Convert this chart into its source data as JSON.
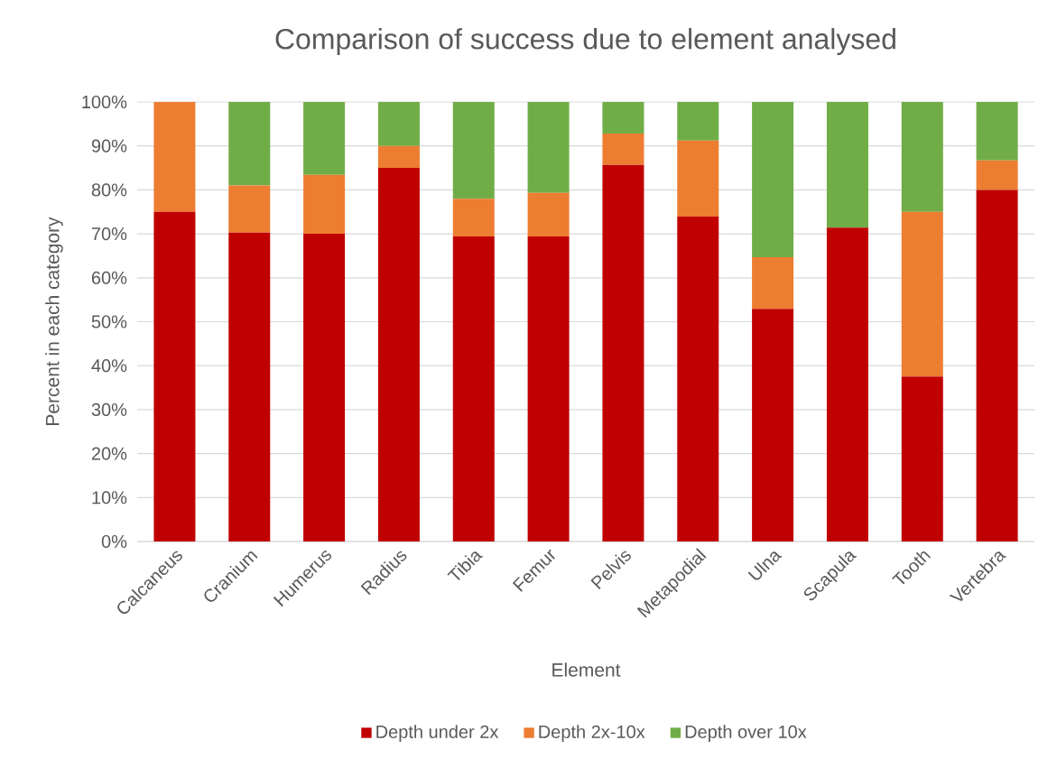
{
  "chart_data": {
    "type": "bar",
    "stacked": true,
    "title": "Comparison of success due to element analysed",
    "xlabel": "Element",
    "ylabel": "Percent in each category",
    "categories": [
      "Calcaneus",
      "Cranium",
      "Humerus",
      "Radius",
      "Tibia",
      "Femur",
      "Pelvis",
      "Metapodial",
      "Ulna",
      "Scapula",
      "Tooth",
      "Vertebra"
    ],
    "series": [
      {
        "name": "Depth under 2x",
        "color": "#c00000",
        "values": [
          75,
          70.3,
          70,
          85,
          69.4,
          69.4,
          85.7,
          73.9,
          52.9,
          71.4,
          37.5,
          80
        ]
      },
      {
        "name": "Depth  2x-10x",
        "color": "#ed7d31",
        "values": [
          25,
          10.7,
          13.4,
          5,
          8.6,
          9.9,
          7.1,
          17.3,
          11.8,
          0,
          37.5,
          6.7
        ]
      },
      {
        "name": "Depth over 10x",
        "color": "#70ad47",
        "values": [
          0,
          19,
          16.6,
          10,
          22,
          20.7,
          7.2,
          8.8,
          35.3,
          28.6,
          25,
          13.3
        ]
      }
    ],
    "ylim": [
      0,
      100
    ],
    "yticks": [
      {
        "value": 0,
        "label": "0%"
      },
      {
        "value": 10,
        "label": "10%"
      },
      {
        "value": 20,
        "label": "20%"
      },
      {
        "value": 30,
        "label": "30%"
      },
      {
        "value": 40,
        "label": "40%"
      },
      {
        "value": 50,
        "label": "50%"
      },
      {
        "value": 60,
        "label": "60%"
      },
      {
        "value": 70,
        "label": "70%"
      },
      {
        "value": 80,
        "label": "80%"
      },
      {
        "value": 90,
        "label": "90%"
      },
      {
        "value": 100,
        "label": "100%"
      }
    ],
    "grid": "y",
    "legend": "bottom"
  }
}
